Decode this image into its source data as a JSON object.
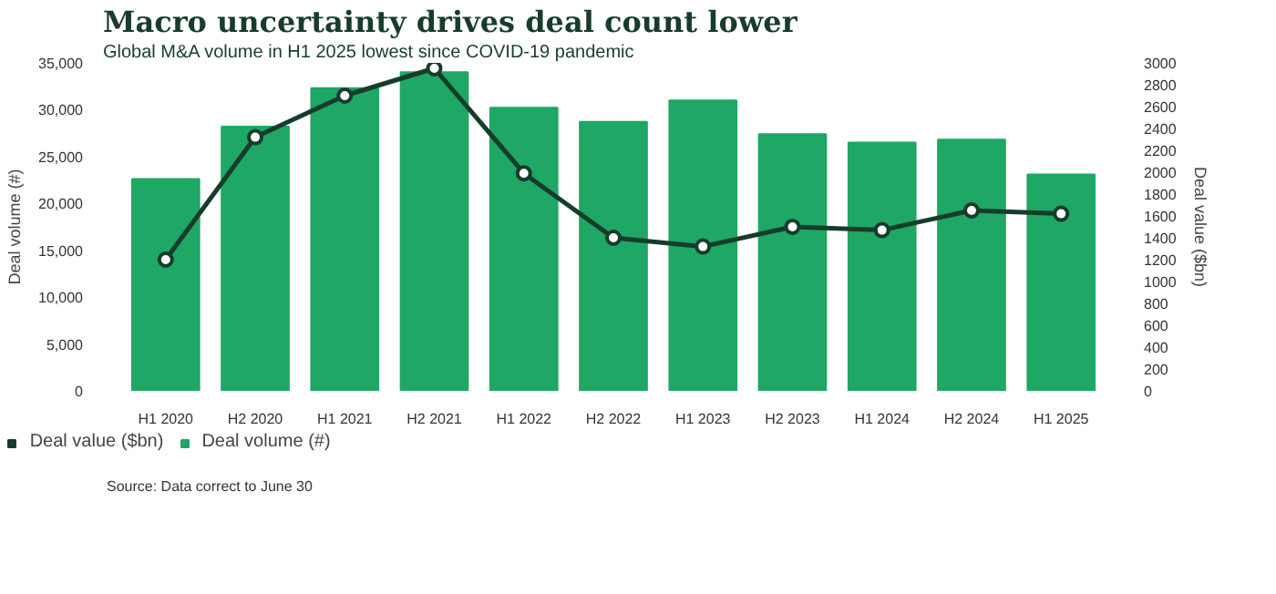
{
  "chart_data": {
    "type": "bar",
    "title": "Macro uncertainty drives deal count lower",
    "subtitle": "Global M&A volume in H1 2025 lowest since COVID-19 pandemic",
    "ylabel": "Deal volume (#)",
    "y2label": "Deal value ($bn)",
    "categories": [
      "H1 2020",
      "H2 2020",
      "H1 2021",
      "H2 2021",
      "H1 2022",
      "H2 2022",
      "H1 2023",
      "H2 2023",
      "H1 2024",
      "H2 2024",
      "H1 2025"
    ],
    "series": [
      {
        "name": "Deal value ($bn)",
        "type": "line",
        "axis": "y2",
        "color": "#173c2b",
        "marker": "circle",
        "values": [
          1200,
          2320,
          2700,
          2950,
          1990,
          1400,
          1320,
          1500,
          1470,
          1650,
          1620
        ]
      },
      {
        "name": "Deal volume (#)",
        "color": "#1ea765",
        "values": [
          22600,
          28200,
          32300,
          34000,
          30200,
          28700,
          31000,
          27400,
          26500,
          26800,
          23100
        ]
      }
    ],
    "ylim": [
      0,
      35000
    ],
    "yticks": [
      0,
      {
        "value": 5000,
        "label": "5,000"
      },
      {
        "value": 10000,
        "label": "10,000"
      },
      {
        "value": 15000,
        "label": "15,000"
      },
      {
        "value": 20000,
        "label": "20,000"
      },
      {
        "value": 25000,
        "label": "25,000"
      },
      {
        "value": 30000,
        "label": "30,000"
      },
      {
        "value": 35000,
        "label": "35,000"
      }
    ],
    "y2lim": [
      0,
      3000
    ],
    "y2ticks": [
      0,
      200,
      400,
      600,
      800,
      1000,
      1200,
      1400,
      1600,
      1800,
      2000,
      2200,
      2400,
      2600,
      2800,
      3000
    ],
    "legend": "bottom left",
    "grid": false,
    "annotations": [
      "Source: Data correct to June 30"
    ]
  }
}
